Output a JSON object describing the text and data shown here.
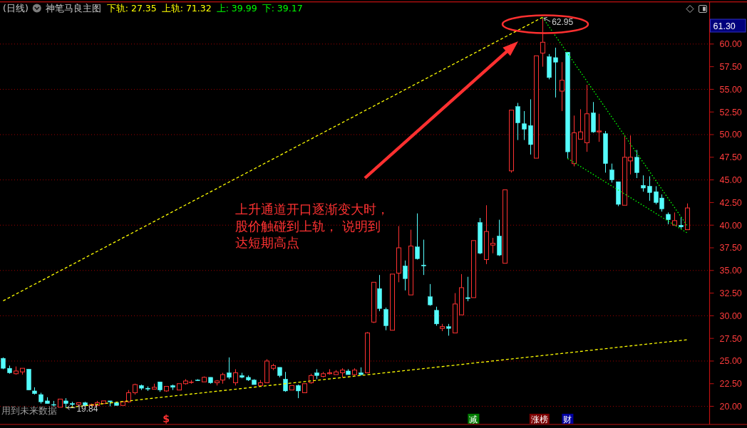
{
  "chart_data": {
    "type": "candlestick",
    "title": "(日线)",
    "subtitle": "神笔马良主图",
    "categories": [
      null,
      null,
      null,
      null,
      null,
      null,
      null,
      null,
      null,
      null,
      null,
      null,
      null,
      null,
      null,
      null,
      null,
      null,
      null,
      null,
      null,
      null,
      null,
      null,
      null,
      null,
      null,
      null,
      null,
      null,
      null,
      null,
      null,
      null,
      null,
      null,
      null,
      null,
      null,
      null,
      null,
      null,
      null,
      null,
      null,
      null,
      null,
      null,
      null,
      null,
      null,
      null,
      null,
      null,
      null,
      null,
      null,
      null,
      null,
      null,
      null,
      null,
      null,
      null,
      null,
      null,
      null,
      null,
      null,
      null,
      null,
      null,
      null,
      null,
      null,
      null,
      null,
      null,
      null,
      null,
      null,
      null,
      null,
      null,
      null,
      null,
      null,
      null,
      null,
      null,
      null,
      null,
      null,
      null,
      null,
      null,
      null,
      null,
      null,
      null,
      null,
      null,
      null,
      null,
      null,
      null,
      null,
      null,
      null,
      null
    ],
    "ohlc": [
      [
        25.3,
        25.4,
        24.1,
        24.2
      ],
      [
        24.2,
        24.5,
        23.6,
        23.7
      ],
      [
        23.6,
        24.4,
        23.5,
        23.9
      ],
      [
        23.8,
        24.2,
        23.5,
        24.2
      ],
      [
        24.1,
        24.1,
        21.8,
        21.8
      ],
      [
        21.7,
        22.1,
        21.3,
        21.4
      ],
      [
        21.3,
        21.5,
        20.3,
        20.5
      ],
      [
        20.6,
        21.0,
        20.3,
        20.3
      ],
      [
        20.2,
        20.6,
        20.0,
        20.2
      ],
      [
        19.9,
        20.8,
        19.9,
        20.8
      ],
      [
        20.6,
        20.9,
        19.84,
        20.3
      ],
      [
        20.3,
        20.5,
        20.0,
        20.2
      ],
      [
        20.2,
        20.4,
        20.0,
        20.4
      ],
      [
        20.4,
        20.5,
        20.0,
        20.1
      ],
      [
        20.1,
        20.3,
        20.0,
        20.2
      ],
      [
        20.1,
        20.6,
        20.1,
        20.4
      ],
      [
        20.3,
        20.6,
        20.3,
        20.6
      ],
      [
        20.6,
        20.6,
        20.0,
        20.5
      ],
      [
        20.4,
        20.5,
        20.1,
        20.1
      ],
      [
        20.1,
        20.6,
        20.1,
        20.5
      ],
      [
        20.5,
        21.8,
        20.4,
        21.5
      ],
      [
        21.5,
        22.5,
        21.3,
        22.4
      ],
      [
        22.3,
        22.4,
        21.8,
        22.0
      ],
      [
        22.0,
        22.2,
        21.7,
        21.9
      ],
      [
        21.9,
        22.5,
        21.9,
        22.1
      ],
      [
        22.7,
        22.7,
        21.6,
        21.8
      ],
      [
        21.7,
        22.2,
        21.6,
        22.2
      ],
      [
        22.3,
        22.4,
        21.8,
        22.1
      ],
      [
        21.8,
        22.5,
        21.8,
        22.5
      ],
      [
        22.5,
        23.0,
        22.4,
        22.8
      ],
      [
        22.7,
        22.9,
        22.5,
        22.7
      ],
      [
        22.9,
        23.0,
        22.8,
        22.9
      ],
      [
        22.7,
        23.3,
        22.7,
        23.2
      ],
      [
        23.2,
        23.2,
        22.5,
        22.6
      ],
      [
        22.6,
        22.9,
        22.3,
        22.8
      ],
      [
        22.9,
        23.7,
        22.5,
        23.5
      ],
      [
        23.7,
        25.4,
        23.0,
        23.2
      ],
      [
        22.6,
        24.1,
        22.3,
        23.7
      ],
      [
        23.4,
        23.7,
        23.1,
        23.2
      ],
      [
        23.2,
        23.4,
        22.8,
        22.9
      ],
      [
        22.9,
        23.0,
        22.4,
        22.4
      ],
      [
        22.3,
        22.9,
        22.3,
        22.6
      ],
      [
        22.6,
        25.2,
        22.6,
        25.0
      ],
      [
        24.2,
        24.7,
        24.0,
        24.5
      ],
      [
        24.3,
        24.3,
        23.2,
        23.4
      ],
      [
        23.0,
        23.8,
        21.6,
        21.7
      ],
      [
        21.8,
        22.3,
        21.8,
        22.3
      ],
      [
        22.3,
        22.4,
        20.9,
        21.7
      ],
      [
        21.5,
        22.5,
        21.5,
        22.5
      ],
      [
        22.6,
        23.6,
        22.5,
        23.4
      ],
      [
        23.7,
        24.1,
        23.0,
        23.4
      ],
      [
        23.3,
        23.8,
        23.2,
        23.6
      ],
      [
        23.6,
        24.1,
        23.5,
        23.7
      ],
      [
        23.5,
        24.0,
        23.5,
        23.8
      ],
      [
        23.7,
        24.2,
        23.2,
        24.0
      ],
      [
        23.9,
        24.1,
        23.5,
        23.5
      ],
      [
        23.5,
        24.2,
        23.4,
        24.0
      ],
      [
        23.7,
        24.3,
        23.4,
        23.5
      ],
      [
        23.7,
        28.2,
        23.7,
        28.1
      ],
      [
        29.3,
        33.7,
        29.2,
        33.7
      ],
      [
        33.0,
        34.5,
        30.5,
        30.8
      ],
      [
        30.7,
        30.9,
        28.4,
        28.9
      ],
      [
        28.4,
        34.6,
        28.4,
        34.6
      ],
      [
        34.7,
        39.9,
        33.7,
        37.5
      ],
      [
        35.5,
        36.1,
        32.8,
        34.1
      ],
      [
        32.3,
        39.5,
        32.3,
        37.7
      ],
      [
        37.6,
        41.3,
        36.2,
        36.3
      ],
      [
        35.6,
        38.4,
        34.5,
        35.5
      ],
      [
        32.1,
        33.5,
        31.1,
        31.2
      ],
      [
        30.6,
        31.0,
        28.9,
        29.1
      ],
      [
        28.6,
        29.1,
        28.3,
        28.8
      ],
      [
        28.8,
        29.1,
        27.8,
        28.6
      ],
      [
        28.1,
        32.5,
        28.1,
        31.3
      ],
      [
        30.1,
        34.6,
        30.1,
        33.1
      ],
      [
        32.0,
        34.3,
        31.6,
        31.9
      ],
      [
        32.0,
        38.3,
        32.0,
        38.3
      ],
      [
        40.3,
        40.8,
        36.8,
        36.9
      ],
      [
        36.2,
        42.2,
        35.7,
        39.3
      ],
      [
        37.8,
        38.6,
        36.9,
        38.0
      ],
      [
        38.8,
        40.6,
        36.6,
        36.7
      ],
      [
        35.8,
        43.9,
        35.8,
        43.9
      ],
      [
        46.0,
        52.7,
        45.8,
        52.7
      ],
      [
        53.1,
        53.5,
        49.4,
        51.3
      ],
      [
        51.2,
        52.6,
        49.4,
        50.6
      ],
      [
        51.0,
        53.9,
        47.8,
        48.9
      ],
      [
        47.4,
        58.7,
        47.4,
        58.7
      ],
      [
        59.0,
        62.95,
        57.5,
        60.2
      ],
      [
        58.6,
        58.9,
        56.1,
        56.3
      ],
      [
        58.5,
        59.6,
        54.1,
        58.0
      ],
      [
        54.8,
        58.0,
        52.6,
        56.0
      ],
      [
        59.1,
        59.1,
        47.36,
        48.1
      ],
      [
        46.8,
        52.1,
        46.5,
        50.2
      ],
      [
        49.5,
        52.8,
        49.5,
        50.3
      ],
      [
        49.1,
        55.5,
        48.1,
        52.3
      ],
      [
        52.4,
        53.6,
        50.2,
        50.3
      ],
      [
        50.3,
        52.3,
        49.2,
        50.4
      ],
      [
        50.1,
        50.4,
        45.8,
        46.8
      ],
      [
        46.1,
        46.8,
        44.7,
        45.0
      ],
      [
        44.8,
        44.8,
        42.1,
        42.3
      ],
      [
        42.2,
        49.9,
        42.2,
        47.5
      ],
      [
        47.1,
        49.9,
        45.6,
        47.5
      ],
      [
        47.5,
        48.3,
        45.2,
        45.8
      ],
      [
        44.4,
        45.5,
        43.7,
        44.1
      ],
      [
        44.3,
        45.4,
        42.7,
        43.6
      ],
      [
        43.7,
        44.3,
        42.3,
        42.5
      ],
      [
        43.0,
        43.4,
        41.5,
        41.8
      ],
      [
        41.2,
        41.4,
        40.1,
        40.6
      ],
      [
        40.0,
        41.4,
        40.0,
        40.5
      ],
      [
        40.0,
        40.9,
        39.6,
        39.8
      ],
      [
        39.5,
        42.4,
        39.5,
        41.9
      ]
    ],
    "colors": [
      "#54fcfc",
      "#54fcfc",
      "#ff3232",
      "#ff3232",
      "#54fcfc",
      "#54fcfc",
      "#54fcfc",
      "#54fcfc",
      "#54fcfc",
      "#ff3232",
      "#54fcfc",
      "#54fcfc",
      "#ff3232",
      "#54fcfc",
      "#ff3232",
      "#ff3232",
      "#ff3232",
      "#54fcfc",
      "#54fcfc",
      "#ff3232",
      "#ff3232",
      "#ff3232",
      "#54fcfc",
      "#54fcfc",
      "#ff3232",
      "#54fcfc",
      "#ff3232",
      "#54fcfc",
      "#ff3232",
      "#ff3232",
      "#ff3232",
      "#54fcfc",
      "#ff3232",
      "#54fcfc",
      "#ff3232",
      "#ff3232",
      "#54fcfc",
      "#ff3232",
      "#54fcfc",
      "#54fcfc",
      "#54fcfc",
      "#ff3232",
      "#ff3232",
      "#ff3232",
      "#54fcfc",
      "#54fcfc",
      "#ff3232",
      "#54fcfc",
      "#ff3232",
      "#ff3232",
      "#54fcfc",
      "#ff3232",
      "#ff3232",
      "#ff3232",
      "#ff3232",
      "#54fcfc",
      "#ff3232",
      "#54fcfc",
      "#ff3232",
      "#ff3232",
      "#54fcfc",
      "#54fcfc",
      "#ff3232",
      "#ff3232",
      "#54fcfc",
      "#ff3232",
      "#54fcfc",
      "#54fcfc",
      "#54fcfc",
      "#54fcfc",
      "#ff3232",
      "#54fcfc",
      "#ff3232",
      "#ff3232",
      "#54fcfc",
      "#ff3232",
      "#54fcfc",
      "#ff3232",
      "#ff3232",
      "#54fcfc",
      "#ff3232",
      "#ff3232",
      "#54fcfc",
      "#54fcfc",
      "#54fcfc",
      "#ff3232",
      "#ff3232",
      "#54fcfc",
      "#54fcfc",
      "#ff3232",
      "#54fcfc",
      "#ff3232",
      "#ff3232",
      "#ff3232",
      "#54fcfc",
      "#ff3232",
      "#54fcfc",
      "#54fcfc",
      "#54fcfc",
      "#ff3232",
      "#ff3232",
      "#54fcfc",
      "#54fcfc",
      "#54fcfc",
      "#54fcfc",
      "#54fcfc",
      "#54fcfc",
      "#ff3232",
      "#54fcfc",
      "#ff3232"
    ],
    "series": [
      {
        "type": "line",
        "color": "#ffff00",
        "line_style": "dashed",
        "values": [
          null,
          null,
          null,
          null,
          null,
          null,
          null,
          null,
          null,
          null,
          19.84,
          19.92,
          19.99,
          20.07,
          20.14,
          20.22,
          20.3,
          20.37,
          20.45,
          20.52,
          20.6,
          20.67,
          20.75,
          20.83,
          20.9,
          20.98,
          21.05,
          21.13,
          21.21,
          21.28,
          21.36,
          21.43,
          21.51,
          21.59,
          21.66,
          21.74,
          21.81,
          21.89,
          21.96,
          22.04,
          22.12,
          22.19,
          22.27,
          22.34,
          22.42,
          22.5,
          22.57,
          22.65,
          22.72,
          22.8,
          22.87,
          22.95,
          23.03,
          23.1,
          23.18,
          23.25,
          23.33,
          23.41,
          23.48,
          23.56,
          23.63,
          23.71,
          23.78,
          23.86,
          23.94,
          24.01,
          24.09,
          24.16,
          24.24,
          24.32,
          24.39,
          24.47,
          24.54,
          24.62,
          24.7,
          24.77,
          24.85,
          24.92,
          25.0,
          25.07,
          25.15,
          25.23,
          25.3,
          25.38,
          25.45,
          25.53,
          25.61,
          25.68,
          25.76,
          25.83,
          25.91,
          25.98,
          26.06,
          26.14,
          26.21,
          26.29,
          26.36,
          26.44,
          26.52,
          26.59,
          26.67,
          26.74,
          26.82,
          26.89,
          26.97,
          27.05,
          27.12,
          27.2,
          27.27,
          27.35
        ]
      },
      {
        "type": "line",
        "color": "#ffff00",
        "line_style": "dashed",
        "values": [
          31.65,
          32.01,
          32.38,
          32.74,
          33.11,
          33.47,
          33.83,
          34.2,
          34.56,
          34.93,
          35.29,
          35.65,
          36.02,
          36.38,
          36.75,
          37.11,
          37.47,
          37.84,
          38.2,
          38.57,
          38.93,
          39.29,
          39.66,
          40.02,
          40.38,
          40.75,
          41.11,
          41.48,
          41.84,
          42.2,
          42.57,
          42.93,
          43.3,
          43.66,
          44.02,
          44.39,
          44.75,
          45.12,
          45.48,
          45.84,
          46.21,
          46.57,
          46.94,
          47.3,
          47.66,
          48.03,
          48.39,
          48.76,
          49.12,
          49.48,
          49.85,
          50.21,
          50.58,
          50.94,
          51.3,
          51.67,
          52.03,
          52.4,
          52.76,
          53.12,
          53.49,
          53.85,
          54.21,
          54.58,
          54.94,
          55.31,
          55.67,
          56.03,
          56.4,
          56.76,
          57.13,
          57.49,
          57.85,
          58.22,
          58.58,
          58.95,
          59.31,
          59.67,
          60.04,
          60.4,
          60.77,
          61.13,
          61.49,
          61.86,
          62.22,
          62.59,
          62.95,
          null,
          null,
          null,
          null,
          null,
          null,
          null,
          null,
          null,
          null,
          null,
          null,
          null,
          null,
          null,
          null,
          null,
          null,
          null,
          null,
          null,
          null,
          null
        ]
      },
      {
        "type": "line",
        "color": "#00ff00",
        "line_style": "dotted",
        "values": [
          null,
          null,
          null,
          null,
          null,
          null,
          null,
          null,
          null,
          null,
          null,
          null,
          null,
          null,
          null,
          null,
          null,
          null,
          null,
          null,
          null,
          null,
          null,
          null,
          null,
          null,
          null,
          null,
          null,
          null,
          null,
          null,
          null,
          null,
          null,
          null,
          null,
          null,
          null,
          null,
          null,
          null,
          null,
          null,
          null,
          null,
          null,
          null,
          null,
          null,
          null,
          null,
          null,
          null,
          null,
          null,
          null,
          null,
          null,
          null,
          null,
          null,
          null,
          null,
          null,
          null,
          null,
          null,
          null,
          null,
          null,
          null,
          null,
          null,
          null,
          null,
          null,
          null,
          null,
          null,
          null,
          null,
          null,
          null,
          null,
          null,
          62.95,
          61.95,
          60.95,
          59.96,
          58.96,
          57.96,
          56.96,
          55.96,
          54.96,
          53.97,
          52.97,
          51.97,
          50.97,
          49.97,
          48.97,
          47.98,
          46.98,
          45.98,
          44.98,
          43.98,
          42.98,
          41.99,
          40.99,
          39.99
        ]
      },
      {
        "type": "line",
        "color": "#00ff00",
        "line_style": "dotted",
        "values": [
          null,
          null,
          null,
          null,
          null,
          null,
          null,
          null,
          null,
          null,
          null,
          null,
          null,
          null,
          null,
          null,
          null,
          null,
          null,
          null,
          null,
          null,
          null,
          null,
          null,
          null,
          null,
          null,
          null,
          null,
          null,
          null,
          null,
          null,
          null,
          null,
          null,
          null,
          null,
          null,
          null,
          null,
          null,
          null,
          null,
          null,
          null,
          null,
          null,
          null,
          null,
          null,
          null,
          null,
          null,
          null,
          null,
          null,
          null,
          null,
          null,
          null,
          null,
          null,
          null,
          null,
          null,
          null,
          null,
          null,
          null,
          null,
          null,
          null,
          null,
          null,
          null,
          null,
          null,
          null,
          null,
          null,
          null,
          null,
          null,
          null,
          null,
          null,
          null,
          null,
          47.36,
          46.93,
          46.5,
          46.07,
          45.64,
          45.2,
          44.77,
          44.34,
          43.91,
          43.48,
          43.05,
          42.62,
          42.19,
          41.76,
          41.33,
          40.89,
          40.46,
          40.03,
          39.6,
          39.17
        ]
      }
    ],
    "ylim": [
      18,
      64.65
    ],
    "yticks": [
      {
        "value": 20,
        "label": "20.00"
      },
      {
        "value": 22.5,
        "label": "22.50"
      },
      {
        "value": 25,
        "label": "25.00"
      },
      {
        "value": 27.5,
        "label": "27.50"
      },
      {
        "value": 30,
        "label": "30.00"
      },
      {
        "value": 32.5,
        "label": "32.50"
      },
      {
        "value": 35,
        "label": "35.00"
      },
      {
        "value": 37.5,
        "label": "37.50"
      },
      {
        "value": 40,
        "label": "40.00"
      },
      {
        "value": 42.5,
        "label": "42.50"
      },
      {
        "value": 45,
        "label": "45.00"
      },
      {
        "value": 47.5,
        "label": "47.50"
      },
      {
        "value": 50,
        "label": "50.00"
      },
      {
        "value": 52.5,
        "label": "52.50"
      },
      {
        "value": 55,
        "label": "55.00"
      },
      {
        "value": 57.5,
        "label": "57.50"
      },
      {
        "value": 60,
        "label": "60.00"
      }
    ],
    "grid": "y",
    "tick_labels": "y",
    "annotations": [
      "下轨: 27.35",
      "上轨: 71.32",
      "上: 39.99",
      "下: 39.17",
      "62.95",
      "19.84",
      "上升通道开口逐渐变大时，股价触碰到上轨， 说明到达短期高点",
      "用到未来数据",
      "61.30",
      "$",
      "减",
      "涨榜",
      "财"
    ]
  }
}
